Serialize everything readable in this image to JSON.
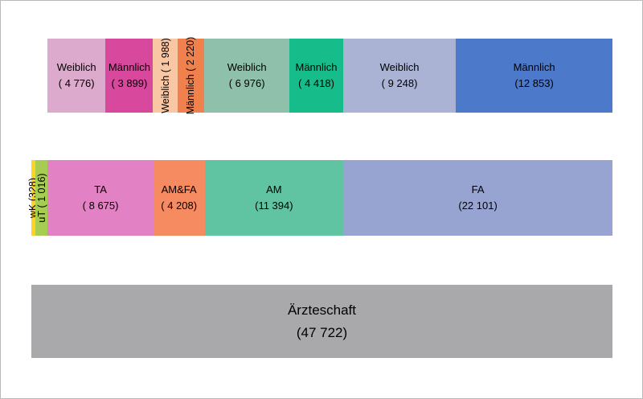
{
  "chart_data": {
    "type": "bar",
    "variant": "stacked-mosaic",
    "orientation": "horizontal",
    "title": "",
    "legend": "none",
    "axes": "none",
    "total": {
      "label": "Ärzteschaft",
      "value": 47722,
      "count_display": "(47 722)"
    },
    "rows": [
      {
        "name": "gender-by-category",
        "row_total": 46378,
        "note": "top bar starts after wK+uT offset of 1344",
        "segments": [
          {
            "label": "Weiblich",
            "count_display": "( 4 776)",
            "value": 4776,
            "color": "#dcaacd",
            "vertical": false
          },
          {
            "label": "Männlich",
            "count_display": "( 3 899)",
            "value": 3899,
            "color": "#d8489d",
            "vertical": false
          },
          {
            "label": "Weiblich",
            "count_display": "( 1 988)",
            "value": 1988,
            "color": "#fac7a5",
            "vertical": true
          },
          {
            "label": "Männlich",
            "count_display": "( 2 220)",
            "value": 2220,
            "color": "#f0814d",
            "vertical": true
          },
          {
            "label": "Weiblich",
            "count_display": "( 6 976)",
            "value": 6976,
            "color": "#8fc0ab",
            "vertical": false
          },
          {
            "label": "Männlich",
            "count_display": "( 4 418)",
            "value": 4418,
            "color": "#16bd8a",
            "vertical": false
          },
          {
            "label": "Weiblich",
            "count_display": "( 9 248)",
            "value": 9248,
            "color": "#aab3d3",
            "vertical": false
          },
          {
            "label": "Männlich",
            "count_display": "(12 853)",
            "value": 12853,
            "color": "#4d79ca",
            "vertical": false
          }
        ]
      },
      {
        "name": "categories",
        "row_total": 47722,
        "segments": [
          {
            "label": "wK",
            "count_display": "(328)",
            "value": 328,
            "color": "#ffd321",
            "vertical": true
          },
          {
            "label": "uT",
            "count_display": "( 1 016)",
            "value": 1016,
            "color": "#a6cd52",
            "vertical": true
          },
          {
            "label": "TA",
            "count_display": "( 8 675)",
            "value": 8675,
            "color": "#e281c3",
            "vertical": false
          },
          {
            "label": "AM&FA",
            "count_display": "( 4 208)",
            "value": 4208,
            "color": "#f68a60",
            "vertical": false
          },
          {
            "label": "AM",
            "count_display": "(11 394)",
            "value": 11394,
            "color": "#60c4a2",
            "vertical": false
          },
          {
            "label": "FA",
            "count_display": "(22 101)",
            "value": 22101,
            "color": "#97a3d0",
            "vertical": false
          }
        ]
      },
      {
        "name": "total",
        "row_total": 47722,
        "segments": [
          {
            "label": "Ärzteschaft",
            "count_display": "(47 722)",
            "value": 47722,
            "color": "#a9a9ab",
            "vertical": false,
            "large": true
          }
        ]
      }
    ],
    "colors": {
      "background": "#ffffff",
      "frame_border": "#b9b9b9",
      "text": "#000000"
    }
  }
}
